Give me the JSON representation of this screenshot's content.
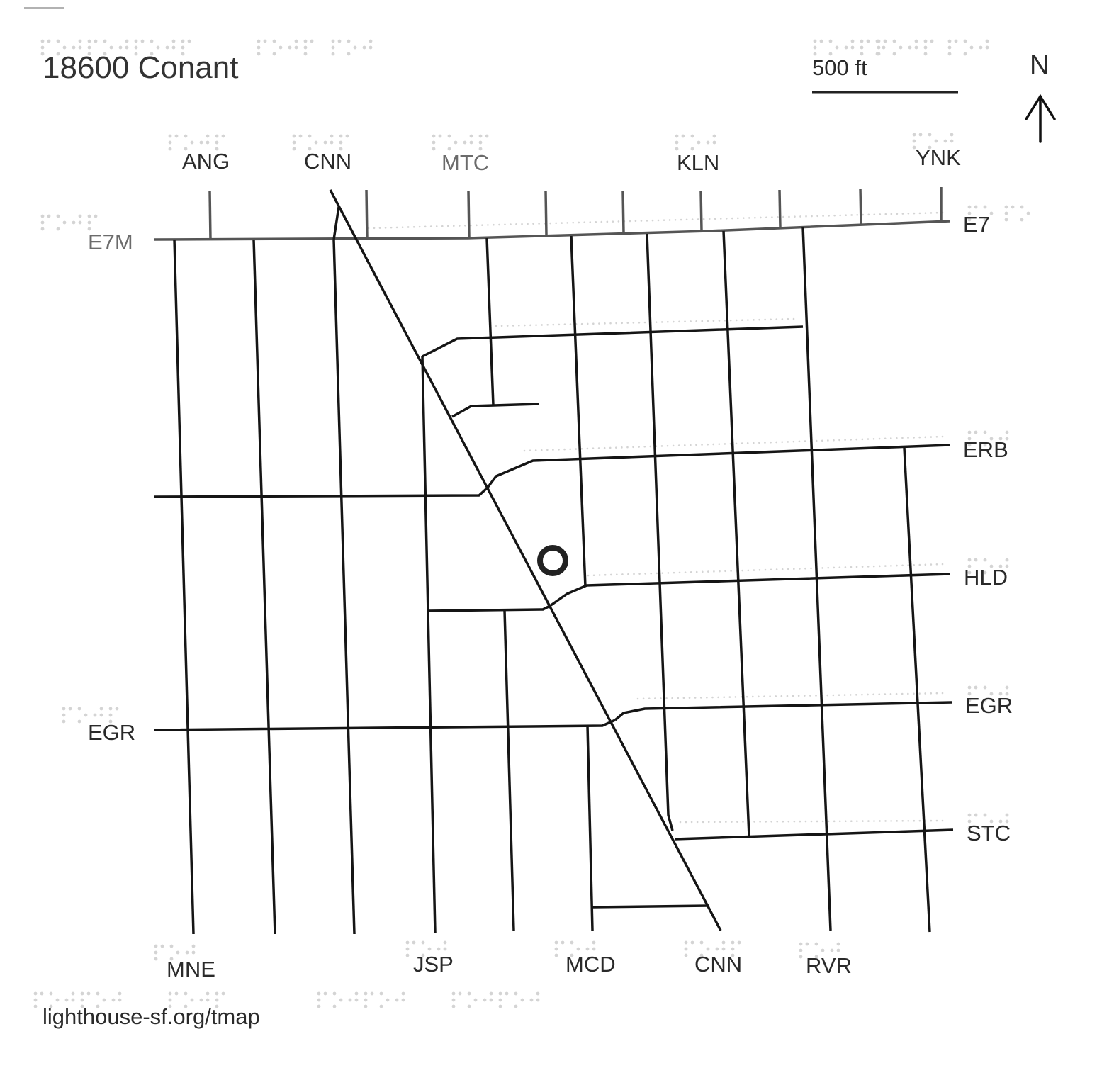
{
  "title": "18600 Conant",
  "scale_label": "500 ft",
  "north_label": "N",
  "footer_url": "lighthouse-sf.org/tmap",
  "icons": {
    "north_arrow": "arrow-up-icon",
    "location_marker": "ring-marker-icon"
  },
  "colors": {
    "road": "#151515",
    "road_grey": "#555555",
    "text": "#2a2a2a",
    "braille": "#d4d4d4",
    "background": "#ffffff"
  },
  "top_labels": [
    "ANG",
    "CNN",
    "MTC",
    "KLN",
    "YNK"
  ],
  "bottom_labels": [
    "MNE",
    "JSP",
    "MCD",
    "CNN",
    "RVR"
  ],
  "right_labels": [
    "E7",
    "ERB",
    "HLD",
    "EGR",
    "STC"
  ],
  "left_labels": [
    "E7M",
    "EGR"
  ]
}
